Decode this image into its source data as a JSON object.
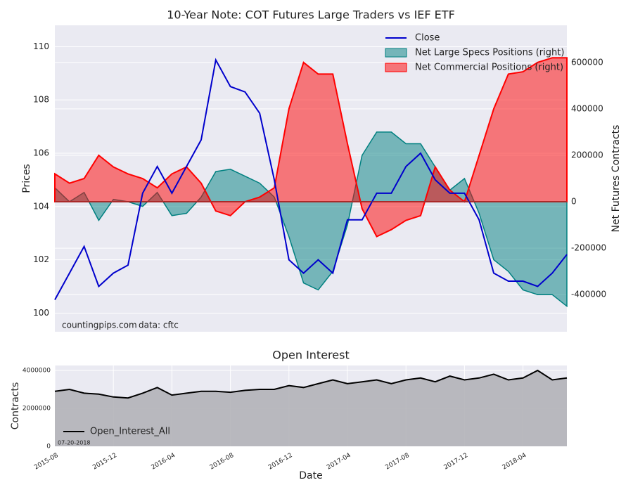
{
  "chart_data": [
    {
      "type": "line",
      "title": "10-Year Note: COT Futures Large Traders vs IEF ETF",
      "y_label": "Prices",
      "y2_label": "Net Futures Contracts",
      "annotations": [
        "countingpips.com",
        "data: cftc"
      ],
      "x": [
        "2015-08",
        "2015-09",
        "2015-10",
        "2015-11",
        "2015-12",
        "2016-01",
        "2016-02",
        "2016-03",
        "2016-04",
        "2016-05",
        "2016-06",
        "2016-07",
        "2016-08",
        "2016-09",
        "2016-10",
        "2016-11",
        "2016-12",
        "2017-01",
        "2017-02",
        "2017-03",
        "2017-04",
        "2017-05",
        "2017-06",
        "2017-07",
        "2017-08",
        "2017-09",
        "2017-10",
        "2017-11",
        "2017-12",
        "2018-01",
        "2018-02",
        "2018-03",
        "2018-04",
        "2018-05",
        "2018-06",
        "2018-07"
      ],
      "ylim": [
        99.3,
        110.8
      ],
      "yticks": [
        100,
        102,
        104,
        106,
        108,
        110
      ],
      "y2lim": [
        -560000,
        760000
      ],
      "y2ticks": [
        -400000,
        -200000,
        0,
        200000,
        400000,
        600000
      ],
      "grid": true,
      "legend": "upper right",
      "series": [
        {
          "name": "Close",
          "color": "#0000cc",
          "kind": "line",
          "values": [
            100.5,
            101.5,
            102.5,
            101,
            101.5,
            101.8,
            104.5,
            105.5,
            104.5,
            105.5,
            106.5,
            109.5,
            108.5,
            108.3,
            107.5,
            105,
            102,
            101.5,
            102,
            101.5,
            103.5,
            103.5,
            104.5,
            104.5,
            105.5,
            106,
            105,
            104.5,
            104.5,
            103.5,
            101.5,
            101.2,
            101.2,
            101,
            101.5,
            102.2
          ]
        },
        {
          "name": "Net Large Specs Positions (right)",
          "color": "#008080",
          "kind": "area",
          "axis": "y2",
          "values": [
            60000,
            0,
            40000,
            -80000,
            10000,
            0,
            -20000,
            40000,
            -60000,
            -50000,
            20000,
            130000,
            140000,
            110000,
            80000,
            20000,
            -150000,
            -350000,
            -380000,
            -300000,
            -100000,
            200000,
            300000,
            300000,
            250000,
            250000,
            150000,
            50000,
            100000,
            -50000,
            -250000,
            -300000,
            -380000,
            -400000,
            -400000,
            -450000
          ]
        },
        {
          "name": "Net Commercial Positions (right)",
          "color": "#ff0000",
          "kind": "area",
          "axis": "y2",
          "values": [
            120000,
            80000,
            100000,
            200000,
            150000,
            120000,
            100000,
            60000,
            120000,
            150000,
            80000,
            -40000,
            -60000,
            0,
            20000,
            60000,
            400000,
            600000,
            550000,
            550000,
            250000,
            -30000,
            -150000,
            -120000,
            -80000,
            -60000,
            150000,
            50000,
            0,
            200000,
            400000,
            550000,
            560000,
            600000,
            620000,
            620000
          ]
        }
      ]
    },
    {
      "type": "area",
      "title": "Open Interest",
      "x_label": "Date",
      "y_label": "Contracts",
      "annotations": [
        "07-20-2018"
      ],
      "legend": "lower left",
      "grid": true,
      "x": [
        "2015-08",
        "2015-09",
        "2015-10",
        "2015-11",
        "2015-12",
        "2016-01",
        "2016-02",
        "2016-03",
        "2016-04",
        "2016-05",
        "2016-06",
        "2016-07",
        "2016-08",
        "2016-09",
        "2016-10",
        "2016-11",
        "2016-12",
        "2017-01",
        "2017-02",
        "2017-03",
        "2017-04",
        "2017-05",
        "2017-06",
        "2017-07",
        "2017-08",
        "2017-09",
        "2017-10",
        "2017-11",
        "2017-12",
        "2018-01",
        "2018-02",
        "2018-03",
        "2018-04",
        "2018-05",
        "2018-06",
        "2018-07"
      ],
      "xticks": [
        "2015-08",
        "2015-12",
        "2016-04",
        "2016-08",
        "2016-12",
        "2017-04",
        "2017-08",
        "2017-12",
        "2018-04"
      ],
      "ylim": [
        0,
        4260000
      ],
      "yticks": [
        0,
        2000000,
        4000000
      ],
      "series": [
        {
          "name": "Open_Interest_All",
          "color": "#000000",
          "fill": "#b3b3b8",
          "values": [
            2900000,
            3000000,
            2800000,
            2750000,
            2600000,
            2550000,
            2800000,
            3100000,
            2700000,
            2800000,
            2900000,
            2900000,
            2850000,
            2950000,
            3000000,
            3000000,
            3200000,
            3100000,
            3300000,
            3500000,
            3300000,
            3400000,
            3500000,
            3300000,
            3500000,
            3600000,
            3400000,
            3700000,
            3500000,
            3600000,
            3800000,
            3500000,
            3600000,
            4000000,
            3500000,
            3600000
          ]
        }
      ]
    }
  ]
}
